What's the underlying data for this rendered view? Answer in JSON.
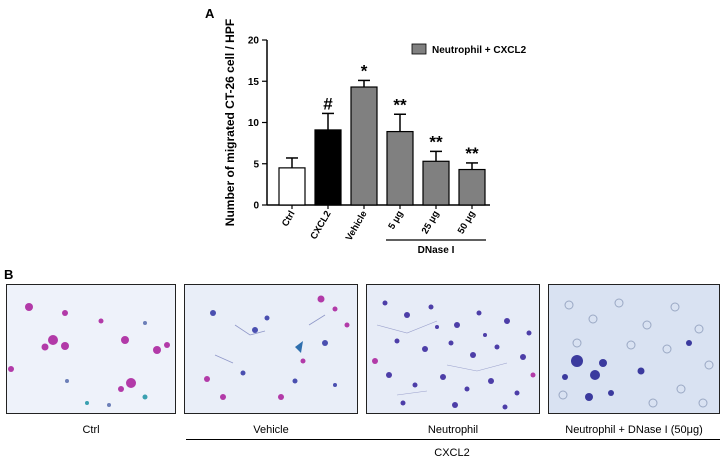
{
  "panel_a": {
    "letter": "A"
  },
  "panel_b": {
    "letter": "B",
    "images": [
      {
        "label": "Ctrl"
      },
      {
        "label": "Vehicle"
      },
      {
        "label": "Neutrophil"
      },
      {
        "label": "Neutrophil + DNase I (50μg)"
      }
    ],
    "group_label": "CXCL2"
  },
  "chart_data": {
    "type": "bar",
    "title": "",
    "ylabel": "Number of migrated CT-26 cell / HPF",
    "xlabel": "",
    "ylim": [
      0,
      20
    ],
    "yticks": [
      0,
      5,
      10,
      15,
      20
    ],
    "categories": [
      "Ctrl",
      "CXCL2",
      "Vehicle",
      "5 μg",
      "25 μg",
      "50 μg"
    ],
    "values": [
      4.5,
      9.1,
      14.3,
      8.9,
      5.3,
      4.3
    ],
    "errors": [
      1.2,
      2.0,
      0.8,
      2.1,
      1.2,
      0.8
    ],
    "significance": [
      "",
      "#",
      "*",
      "**",
      "**",
      "**"
    ],
    "bar_colors": [
      "#ffffff",
      "#000000",
      "#808080",
      "#808080",
      "#808080",
      "#808080"
    ],
    "legend": {
      "label": "Neutrophil + CXCL2",
      "color": "#808080",
      "position": "top-right"
    },
    "group_bracket": {
      "label": "DNase I",
      "categories": [
        "5 μg",
        "25 μg",
        "50 μg"
      ]
    },
    "grid": false
  }
}
